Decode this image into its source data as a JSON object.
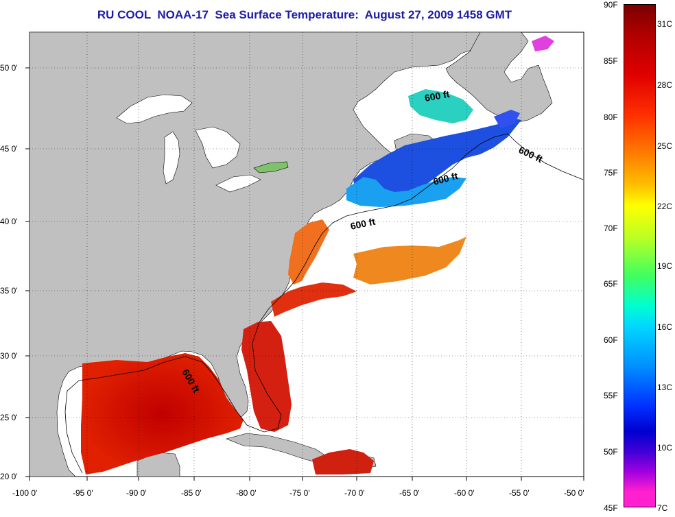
{
  "title": "RU COOL  NOAA-17  Sea Surface Temperature:  August 27, 2009 1458 GMT",
  "map": {
    "lon_range": [
      -100,
      -50
    ],
    "lat_range": [
      20,
      52.5
    ],
    "lon_ticks": [
      "-100 0'",
      "-95 0'",
      "-90 0'",
      "-85 0'",
      "-80 0'",
      "-75 0'",
      "-70 0'",
      "-65 0'",
      "-60 0'",
      "-55 0'",
      "-50 0'"
    ],
    "lat_ticks": [
      "20 0'",
      "25 0'",
      "30 0'",
      "35 0'",
      "40 0'",
      "45 0'",
      "50 0'"
    ],
    "contour_labels": [
      "600 ft",
      "600 ft",
      "600 ft",
      "600 ft"
    ],
    "land_color": "#c0c0c0",
    "no_data_color": "#ffffff",
    "grid": "dotted"
  },
  "colorbar": {
    "fahrenheit": [
      "90F",
      "85F",
      "80F",
      "75F",
      "70F",
      "65F",
      "60F",
      "55F",
      "50F",
      "45F"
    ],
    "celsius": [
      "31C",
      "28C",
      "25C",
      "22C",
      "19C",
      "16C",
      "13C",
      "10C",
      "7C"
    ],
    "range_f": [
      45,
      90
    ]
  }
}
